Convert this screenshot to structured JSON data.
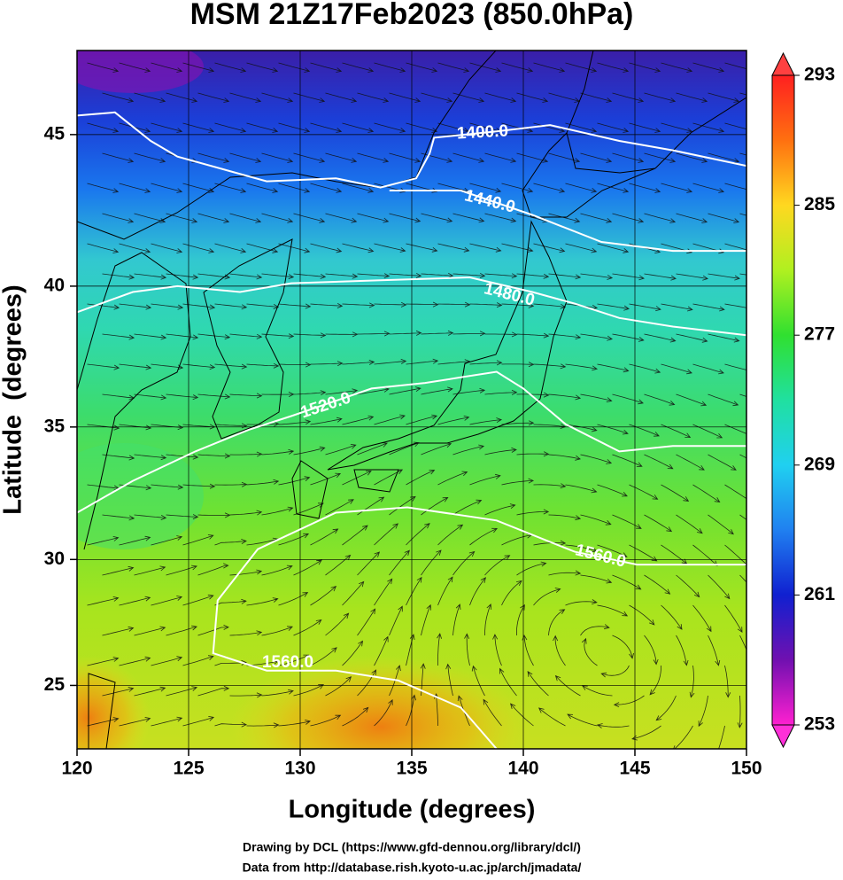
{
  "chart_data": {
    "type": "map",
    "title": "MSM 21Z17Feb2023 (850.0hPa)",
    "x_label": "Longitude (degrees)",
    "y_label": "Latitude  (degrees)",
    "footer": [
      "Drawing by DCL (https://www.gfd-dennou.org/library/dcl/)",
      "Data from http://database.rish.kyoto-u.ac.jp/arch/jmadata/"
    ],
    "projection": "mercator",
    "xlim": [
      120,
      150
    ],
    "xticks": [
      120,
      125,
      130,
      135,
      140,
      145,
      150
    ],
    "ylim": [
      22.4,
      47.6
    ],
    "yticks": [
      25,
      30,
      35,
      40,
      45
    ],
    "grid": true,
    "colorbar": {
      "lim": [
        253,
        293
      ],
      "ticks": [
        253,
        261,
        269,
        277,
        285,
        293
      ]
    },
    "contours": [
      {
        "level": {
          "value": 1400,
          "label": "1400.0"
        },
        "color": "#ffffff",
        "lon": [
          120,
          121.7,
          123.3,
          124.5,
          128.5,
          131.6,
          133.6,
          135.2,
          135.8,
          136.0,
          138.8,
          141.2,
          144.3,
          146.7,
          150
        ],
        "lat": [
          45.6,
          45.7,
          44.8,
          44.3,
          43.5,
          43.6,
          43.3,
          43.6,
          44.4,
          44.9,
          45.1,
          45.3,
          44.8,
          44.5,
          44.0
        ]
      },
      {
        "level": {
          "value": 1440,
          "label": "1440.0"
        },
        "color": "#ffffff",
        "lon": [
          134.0,
          135.2,
          137.2,
          140.4,
          143.5,
          146.7,
          150
        ],
        "lat": [
          43.2,
          43.2,
          43.2,
          42.4,
          41.5,
          41.2,
          41.2
        ]
      },
      {
        "level": {
          "value": 1480,
          "label": "1480.0"
        },
        "color": "#ffffff",
        "lon": [
          120,
          122.5,
          124.5,
          127.3,
          129.6,
          133.6,
          137.6,
          140.4,
          142.3,
          144.3,
          146.7,
          150
        ],
        "lat": [
          39.1,
          39.8,
          40.0,
          39.8,
          40.1,
          40.2,
          40.3,
          39.8,
          39.4,
          38.9,
          38.6,
          38.3
        ]
      },
      {
        "level": {
          "value": 1520,
          "label": "1520.0"
        },
        "color": "#ffffff",
        "lon": [
          120,
          122.5,
          125.3,
          127.7,
          129.6,
          133.2,
          135.6,
          137.2,
          138.8,
          140.0,
          141.9,
          144.3,
          146.7,
          150
        ],
        "lat": [
          31.8,
          33.0,
          34.1,
          34.9,
          35.4,
          36.4,
          36.6,
          36.8,
          37.0,
          36.4,
          35.1,
          34.1,
          34.3,
          34.3
        ]
      },
      {
        "level": {
          "value": 1560,
          "label": "1560.0"
        },
        "color": "#ffffff",
        "lon": [
          150,
          145.1,
          142.3,
          138.8,
          134.8,
          131.6,
          128.1,
          126.3,
          126.1,
          128.5,
          131.6,
          134.4,
          137.2,
          138.8
        ],
        "lat": [
          29.8,
          29.8,
          30.3,
          31.5,
          32.0,
          31.8,
          30.4,
          28.4,
          26.3,
          25.6,
          25.6,
          25.2,
          24.1,
          22.4
        ]
      }
    ]
  }
}
